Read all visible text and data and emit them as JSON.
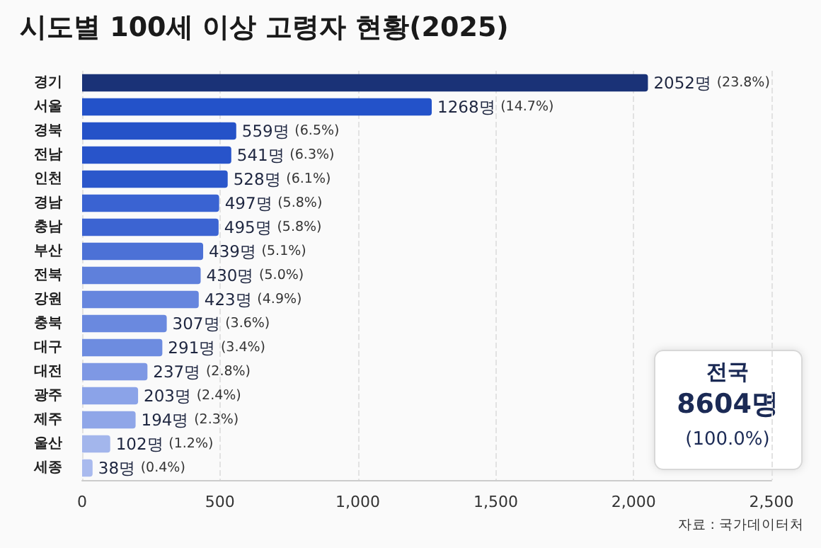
{
  "chart_data": {
    "type": "bar",
    "orientation": "horizontal",
    "title": "시도별 100세 이상 고령자 현황(2025)",
    "categories": [
      "경기",
      "서울",
      "경북",
      "전남",
      "인천",
      "경남",
      "충남",
      "부산",
      "전북",
      "강원",
      "충북",
      "대구",
      "대전",
      "광주",
      "제주",
      "울산",
      "세종"
    ],
    "values": [
      2052,
      1268,
      559,
      541,
      528,
      497,
      495,
      439,
      430,
      423,
      307,
      291,
      237,
      203,
      194,
      102,
      38
    ],
    "value_labels": [
      "2052명 (23.8%)",
      "1268명 (14.7%)",
      "559명 (6.5%)",
      "541명 (6.3%)",
      "528명 (6.1%)",
      "497명 (5.8%)",
      "495명 (5.8%)",
      "439명 (5.1%)",
      "430명 (5.0%)",
      "423명 (4.9%)",
      "307명 (3.6%)",
      "291명 (3.4%)",
      "237명 (2.8%)",
      "203명 (2.4%)",
      "194명 (2.3%)",
      "102명 (1.2%)",
      "38명 (0.4%)"
    ],
    "colors": [
      "#1a3277",
      "#2352c9",
      "#2552c8",
      "#2854ca",
      "#2b57cb",
      "#3a63d2",
      "#3c64d2",
      "#4c71d6",
      "#5f80db",
      "#6686de",
      "#6a89df",
      "#6d8ce0",
      "#7e98e4",
      "#8ba3e8",
      "#8fa6e8",
      "#a3b6ec",
      "#a9baee"
    ],
    "xlim": [
      0,
      2500
    ],
    "xticks": [
      0,
      {
        "value": 500,
        "label": "500"
      },
      {
        "value": 1000,
        "label": "1,000"
      },
      {
        "value": 1500,
        "label": "1,500"
      },
      {
        "value": 2000,
        "label": "2,000"
      },
      {
        "value": 2500,
        "label": "2,500"
      }
    ],
    "grid": "x",
    "annotations": [
      "전국",
      "8604명",
      "(100.0%)",
      "자료 : 국가데이터처"
    ]
  }
}
